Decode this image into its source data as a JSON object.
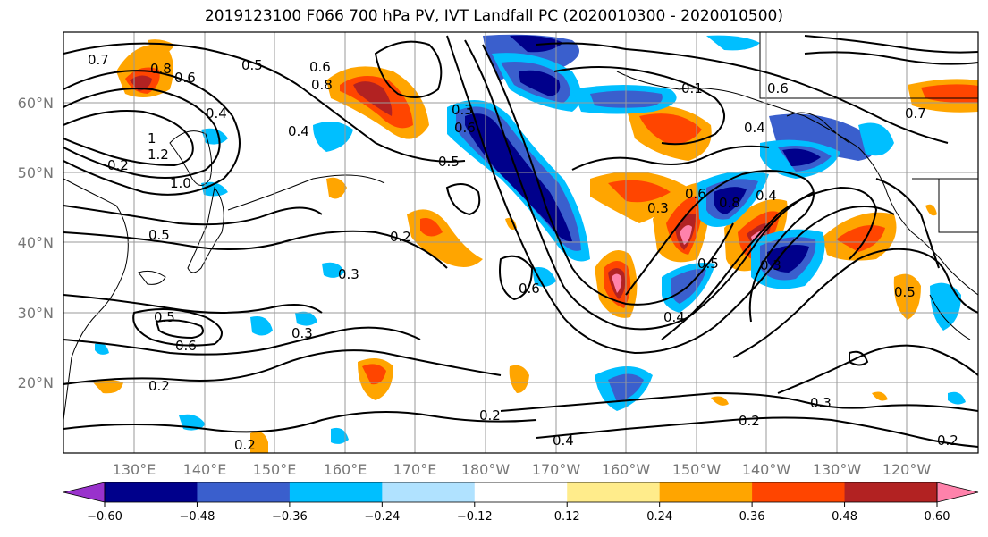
{
  "title": "2019123100 F066 700 hPa PV, IVT Landfall PC (2020010300 - 2020010500)",
  "lat_ticks": [
    "60°N",
    "50°N",
    "40°N",
    "30°N",
    "20°N"
  ],
  "lon_ticks": [
    "130°E",
    "140°E",
    "150°E",
    "160°E",
    "170°E",
    "180°W",
    "170°W",
    "160°W",
    "150°W",
    "140°W",
    "130°W",
    "120°W"
  ],
  "colorbar": {
    "colors": [
      "#9932cc",
      "#00008b",
      "#3a5fcd",
      "#00bfff",
      "#b0e2ff",
      "#ffffff",
      "#ffec8b",
      "#ffa500",
      "#ff4500",
      "#b22222",
      "#ff82ab"
    ],
    "tick_labels": [
      "−0.60",
      "−0.48",
      "−0.36",
      "−0.24",
      "−0.12",
      "0.12",
      "0.24",
      "0.36",
      "0.48",
      "0.60"
    ]
  },
  "contour_labels": [
    "0.7",
    "0.8",
    "0.6",
    "0.5",
    "0.6",
    "0.8",
    "1",
    "1.2",
    "0.2",
    "1.0",
    "0.5",
    "0.4",
    "0.3",
    "0.2",
    "0.5",
    "0.6",
    "0.3",
    "0.2",
    "0.6",
    "0.3",
    "0.6",
    "0.4",
    "0.5",
    "0.2",
    "0.2",
    "0.4",
    "0.2",
    "0.3",
    "0.2",
    "0.5",
    "0.4",
    "0.4",
    "0.3",
    "0.7",
    "0.6",
    "0.4",
    "0.8",
    "0.6",
    "0.5",
    "0.3",
    "0.1"
  ]
}
